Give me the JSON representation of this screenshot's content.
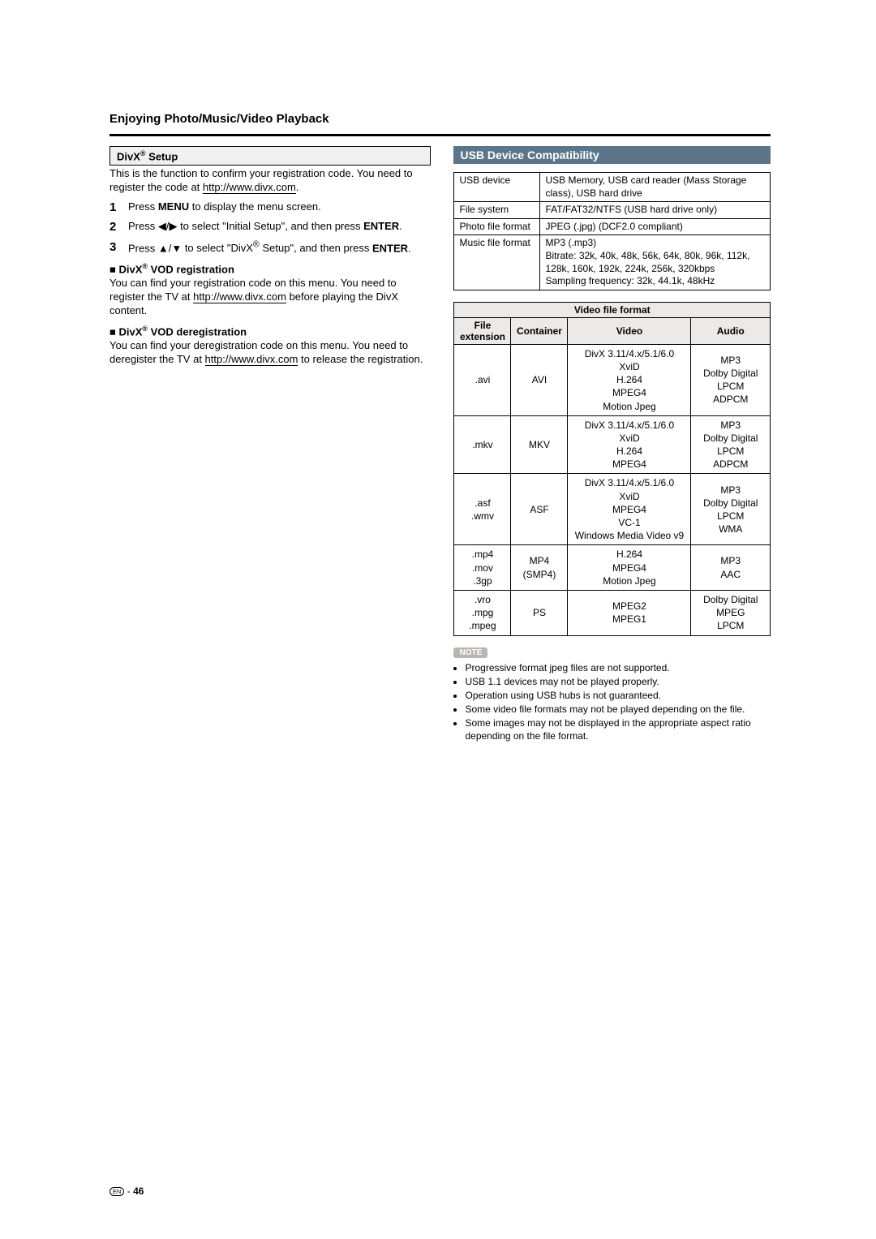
{
  "page_title": "Enjoying Photo/Music/Video Playback",
  "left": {
    "divx_setup_heading": "DivX® Setup",
    "divx_setup_intro1": "This is the function to confirm your registration code. You need to register the code at ",
    "url": "http://www.divx.com",
    "step1_pre": "Press ",
    "menu_word": "MENU",
    "step1_post": " to display the menu screen.",
    "step2_pre": "Press ",
    "step2_mid": " to select \"Initial Setup\", and then press ",
    "enter_word": "ENTER",
    "step3_pre": "Press ",
    "step3_mid": " to select \"DivX® Setup\", and then press ",
    "vod_reg_h": "■ DivX® VOD registration",
    "vod_reg_p_1": "You can find your registration code on this menu. You need to register the TV at ",
    "vod_reg_p_2": " before playing the DivX content.",
    "vod_dereg_h": "■ DivX® VOD deregistration",
    "vod_dereg_p_1": "You can find your deregistration code on this menu. You need to deregister the TV at ",
    "vod_dereg_p_2": " to release the registration."
  },
  "right": {
    "compat_heading": "USB Device Compatibility",
    "t1": {
      "r1k": "USB device",
      "r1v": "USB Memory, USB card reader (Mass Storage class), USB hard drive",
      "r2k": "File system",
      "r2v": "FAT/FAT32/NTFS (USB hard drive only)",
      "r3k": "Photo file format",
      "r3v": "JPEG (.jpg) (DCF2.0 compliant)",
      "r4k": "Music file format",
      "r4v": "MP3 (.mp3)\nBitrate: 32k, 40k, 48k, 56k, 64k, 80k, 96k, 112k, 128k, 160k, 192k, 224k, 256k, 320kbps\nSampling frequency: 32k, 44.1k, 48kHz"
    },
    "t2": {
      "title": "Video file format",
      "h_ext": "File extension",
      "h_cont": "Container",
      "h_vid": "Video",
      "h_aud": "Audio",
      "rows": [
        {
          "ext": ".avi",
          "cont": "AVI",
          "vid": "DivX 3.11/4.x/5.1/6.0\nXviD\nH.264\nMPEG4\nMotion Jpeg",
          "aud": "MP3\nDolby Digital\nLPCM\nADPCM"
        },
        {
          "ext": ".mkv",
          "cont": "MKV",
          "vid": "DivX 3.11/4.x/5.1/6.0\nXviD\nH.264\nMPEG4",
          "aud": "MP3\nDolby Digital\nLPCM\nADPCM"
        },
        {
          "ext": ".asf\n.wmv",
          "cont": "ASF",
          "vid": "DivX 3.11/4.x/5.1/6.0\nXviD\nMPEG4\nVC-1\nWindows Media Video v9",
          "aud": "MP3\nDolby Digital\nLPCM\nWMA"
        },
        {
          "ext": ".mp4\n.mov\n.3gp",
          "cont": "MP4\n(SMP4)",
          "vid": "H.264\nMPEG4\nMotion Jpeg",
          "aud": "MP3\nAAC"
        },
        {
          "ext": ".vro\n.mpg\n.mpeg",
          "cont": "PS",
          "vid": "MPEG2\nMPEG1",
          "aud": "Dolby Digital\nMPEG\nLPCM"
        }
      ]
    },
    "note_label": "NOTE",
    "notes": [
      "Progressive format jpeg files are not supported.",
      "USB 1.1 devices may not be played properly.",
      "Operation using USB hubs is not guaranteed.",
      "Some video file formats may not be played depending on the file.",
      "Some images may not be displayed in the appropriate aspect ratio depending on the file format."
    ]
  },
  "footer_page": "46",
  "footer_en": "EN"
}
